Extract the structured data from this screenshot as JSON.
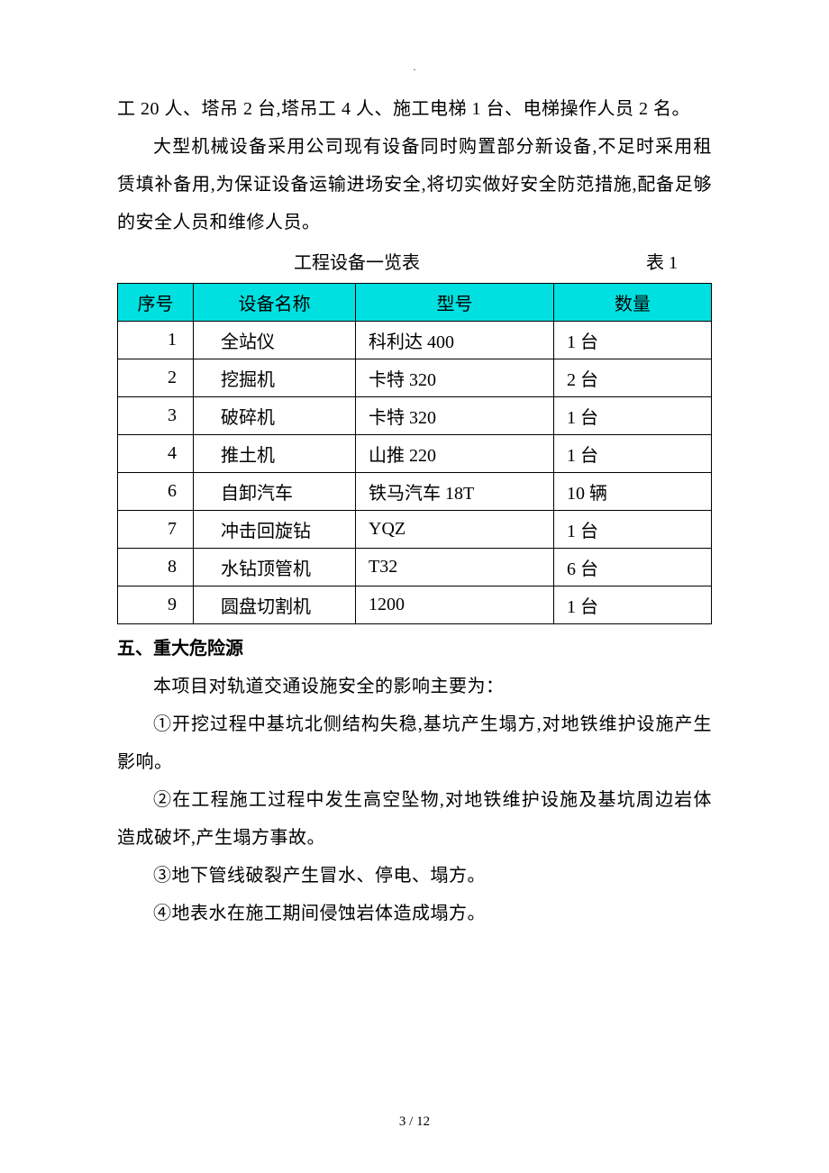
{
  "top_marker": ".",
  "paragraphs": {
    "p1": "工 20 人、塔吊 2 台,塔吊工 4 人、施工电梯 1 台、电梯操作人员 2 名。",
    "p2": "大型机械设备采用公司现有设备同时购置部分新设备,不足时采用租赁填补备用,为保证设备运输进场安全,将切实做好安全防范措施,配备足够的安全人员和维修人员。"
  },
  "table": {
    "caption": "工程设备一览表",
    "label": "表 1",
    "header_bg": "#00e0e0",
    "border_color": "#000000",
    "columns": [
      "序号",
      "设备名称",
      "型号",
      "数量"
    ],
    "rows": [
      [
        "1",
        "全站仪",
        "科利达 400",
        "1 台"
      ],
      [
        "2",
        "挖掘机",
        "卡特 320",
        "2 台"
      ],
      [
        "3",
        "破碎机",
        "卡特 320",
        "1 台"
      ],
      [
        "4",
        "推土机",
        "山推 220",
        "1 台"
      ],
      [
        "6",
        "自卸汽车",
        "铁马汽车 18T",
        "10 辆"
      ],
      [
        "7",
        "冲击回旋钻",
        "YQZ",
        "1 台"
      ],
      [
        "8",
        "水钻顶管机",
        "T32",
        "6 台"
      ],
      [
        "9",
        "圆盘切割机",
        "1200",
        "1 台"
      ]
    ]
  },
  "section5": {
    "heading": "五、重大危险源",
    "intro": "本项目对轨道交通设施安全的影响主要为：",
    "items": [
      "①开挖过程中基坑北侧结构失稳,基坑产生塌方,对地铁维护设施产生影响。",
      "②在工程施工过程中发生高空坠物,对地铁维护设施及基坑周边岩体造成破坏,产生塌方事故。",
      "③地下管线破裂产生冒水、停电、塌方。",
      "④地表水在施工期间侵蚀岩体造成塌方。"
    ]
  },
  "footer": "3  / 12"
}
